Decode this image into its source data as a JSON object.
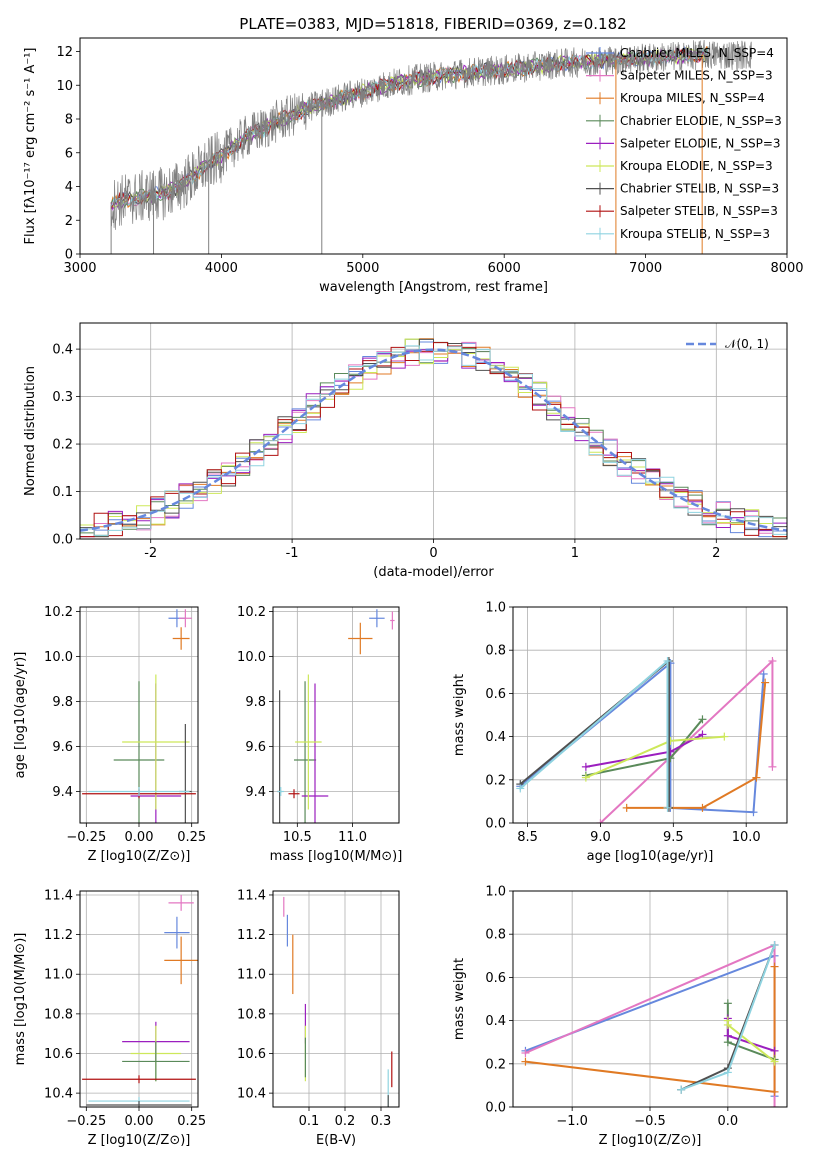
{
  "chart_data": [
    {
      "type": "line",
      "panel": "spectrum",
      "title": "PLATE=0383, MJD=51818, FIBERID=0369, z=0.182",
      "xlabel": "wavelength [Angstrom, rest frame]",
      "ylabel": "Flux [fλ10⁻¹⁷ erg cm⁻² s⁻¹ A⁻¹]",
      "xlim": [
        3000,
        8000
      ],
      "ylim": [
        0,
        12.8
      ],
      "xticks": [
        3000,
        4000,
        5000,
        6000,
        7000,
        8000
      ],
      "yticks": [
        0,
        2,
        4,
        6,
        8,
        10,
        12
      ],
      "legend_position": "upper right",
      "data_series": {
        "name": "data",
        "color": "#808080",
        "x": [
          3220,
          3300,
          3400,
          3500,
          3600,
          3700,
          3800,
          3900,
          4000,
          4100,
          4200,
          4300,
          4400,
          4500,
          4600,
          4700,
          4800,
          4900,
          5000,
          5200,
          5400,
          5600,
          5800,
          6000,
          6200,
          6400,
          6600,
          6800,
          7000,
          7200,
          7400
        ],
        "y": [
          2.9,
          3.2,
          3.3,
          3.5,
          3.6,
          4.0,
          4.6,
          5.3,
          5.8,
          6.5,
          7.1,
          7.4,
          7.9,
          8.2,
          8.6,
          8.9,
          9.1,
          9.4,
          9.6,
          10.1,
          10.4,
          10.6,
          10.8,
          10.9,
          11.1,
          11.3,
          11.4,
          11.5,
          11.6,
          11.7,
          11.8
        ]
      },
      "models": [
        {
          "name": "Chabrier MILES, N_SSP=4",
          "color": "#6688dd"
        },
        {
          "name": "Salpeter MILES, N_SSP=3",
          "color": "#e377c2"
        },
        {
          "name": "Kroupa MILES, N_SSP=4",
          "color": "#e07a24"
        },
        {
          "name": "Chabrier ELODIE, N_SSP=3",
          "color": "#5a8a5a"
        },
        {
          "name": "Salpeter ELODIE, N_SSP=3",
          "color": "#9b1fbf"
        },
        {
          "name": "Kroupa ELODIE, N_SSP=3",
          "color": "#cde85a"
        },
        {
          "name": "Chabrier STELIB, N_SSP=3",
          "color": "#505050"
        },
        {
          "name": "Salpeter STELIB, N_SSP=3",
          "color": "#b01010"
        },
        {
          "name": "Kroupa STELIB, N_SSP=3",
          "color": "#8fd3e0"
        }
      ]
    },
    {
      "type": "line",
      "panel": "residuals",
      "xlabel": "(data-model)/error",
      "ylabel": "Normed distribution",
      "xlim": [
        -2.5,
        2.5
      ],
      "ylim": [
        0,
        0.455
      ],
      "xticks": [
        -2,
        -1,
        0,
        1,
        2
      ],
      "yticks": [
        0.0,
        0.1,
        0.2,
        0.3,
        0.4
      ],
      "grid": true,
      "legend": "𝒩(0, 1)",
      "legend_position": "upper right",
      "gaussian_color": "#6688dd"
    },
    {
      "type": "scatter",
      "panel": "age-vs-Z",
      "xlabel": "Z [log10(Z/Z⊙)]",
      "ylabel": "age  [log10(age/yr)]",
      "xlim": [
        -0.28,
        0.28
      ],
      "ylim": [
        9.26,
        10.22
      ],
      "xticks": [
        -0.25,
        0.0,
        0.25
      ],
      "xticklabels": [
        "−0.25",
        "0.00",
        "0.25"
      ],
      "yticks": [
        9.4,
        9.6,
        9.8,
        10.0,
        10.2
      ],
      "grid": true,
      "points": [
        {
          "x": 0.18,
          "y": 10.17,
          "xerr": 0.04,
          "yerr": 0.04,
          "c": "#6688dd"
        },
        {
          "x": 0.22,
          "y": 10.17,
          "xerr": 0.03,
          "yerr": 0.04,
          "c": "#e377c2"
        },
        {
          "x": 0.2,
          "y": 10.08,
          "xerr": 0.04,
          "yerr": 0.05,
          "c": "#e07a24"
        },
        {
          "x": 0.0,
          "y": 9.54,
          "xerr": 0.12,
          "yerr": 0.35,
          "c": "#5a8a5a"
        },
        {
          "x": 0.08,
          "y": 9.38,
          "xerr": 0.12,
          "yerr": 0.5,
          "c": "#9b1fbf"
        },
        {
          "x": 0.08,
          "y": 9.62,
          "xerr": 0.16,
          "yerr": 0.3,
          "c": "#cde85a"
        },
        {
          "x": 0.22,
          "y": 9.4,
          "xerr": 0.03,
          "yerr": 0.3,
          "c": "#505050"
        },
        {
          "x": 0.0,
          "y": 9.39,
          "xerr": 0.27,
          "yerr": 0.02,
          "c": "#b01010"
        },
        {
          "x": 0.0,
          "y": 9.4,
          "xerr": 0.24,
          "yerr": 0.02,
          "c": "#8fd3e0"
        }
      ]
    },
    {
      "type": "scatter",
      "panel": "age-vs-mass",
      "xlabel": "mass [log10(M/M⊙)]",
      "xlim": [
        10.28,
        11.42
      ],
      "ylim": [
        9.26,
        10.22
      ],
      "xticks": [
        10.5,
        11.0
      ],
      "yticks": [
        9.4,
        9.6,
        9.8,
        10.0,
        10.2
      ],
      "grid": true,
      "points": [
        {
          "x": 11.22,
          "y": 10.17,
          "xerr": 0.07,
          "yerr": 0.04,
          "c": "#6688dd"
        },
        {
          "x": 11.36,
          "y": 10.16,
          "xerr": 0.02,
          "yerr": 0.04,
          "c": "#e377c2"
        },
        {
          "x": 11.07,
          "y": 10.08,
          "xerr": 0.11,
          "yerr": 0.07,
          "c": "#e07a24"
        },
        {
          "x": 10.57,
          "y": 9.54,
          "xerr": 0.1,
          "yerr": 0.35,
          "c": "#5a8a5a"
        },
        {
          "x": 10.66,
          "y": 9.38,
          "xerr": 0.12,
          "yerr": 0.5,
          "c": "#9b1fbf"
        },
        {
          "x": 10.6,
          "y": 9.62,
          "xerr": 0.12,
          "yerr": 0.3,
          "c": "#cde85a"
        },
        {
          "x": 10.34,
          "y": 9.4,
          "xerr": 0.02,
          "yerr": 0.45,
          "c": "#505050"
        },
        {
          "x": 10.47,
          "y": 9.39,
          "xerr": 0.05,
          "yerr": 0.02,
          "c": "#b01010"
        },
        {
          "x": 10.35,
          "y": 9.4,
          "xerr": 0.03,
          "yerr": 0.02,
          "c": "#8fd3e0"
        }
      ]
    },
    {
      "type": "line",
      "panel": "mass-weight-vs-age",
      "xlabel": "age  [log10(age/yr)]",
      "ylabel": "mass weight",
      "xlim": [
        8.4,
        10.28
      ],
      "ylim": [
        0,
        1
      ],
      "xticks": [
        8.5,
        9.0,
        9.5,
        10.0
      ],
      "yticks": [
        0.0,
        0.2,
        0.4,
        0.6,
        0.8,
        1.0
      ],
      "grid": true,
      "series": [
        {
          "c": "#6688dd",
          "x": [
            8.45,
            9.48,
            9.48,
            10.05,
            10.12
          ],
          "y": [
            0.17,
            0.74,
            0.07,
            0.05,
            0.69
          ]
        },
        {
          "c": "#e377c2",
          "x": [
            9.0,
            10.18,
            10.18
          ],
          "y": [
            0.0,
            0.75,
            0.26
          ]
        },
        {
          "c": "#e07a24",
          "x": [
            9.18,
            9.7,
            10.07,
            10.13
          ],
          "y": [
            0.07,
            0.07,
            0.21,
            0.65
          ]
        },
        {
          "c": "#5a8a5a",
          "x": [
            8.9,
            9.48,
            9.7
          ],
          "y": [
            0.22,
            0.3,
            0.48
          ]
        },
        {
          "c": "#9b1fbf",
          "x": [
            8.9,
            9.48,
            9.7
          ],
          "y": [
            0.26,
            0.33,
            0.41
          ]
        },
        {
          "c": "#cde85a",
          "x": [
            8.9,
            9.48,
            9.85
          ],
          "y": [
            0.21,
            0.38,
            0.4
          ]
        },
        {
          "c": "#505050",
          "x": [
            8.45,
            9.47,
            9.47
          ],
          "y": [
            0.18,
            0.75,
            0.07
          ]
        },
        {
          "c": "#8fd3e0",
          "x": [
            8.45,
            9.46,
            9.46
          ],
          "y": [
            0.16,
            0.75,
            0.07
          ]
        }
      ]
    },
    {
      "type": "scatter",
      "panel": "mass-vs-Z",
      "xlabel": "Z [log10(Z/Z⊙)]",
      "ylabel": "mass [log10(M/M⊙)]",
      "xlim": [
        -0.28,
        0.28
      ],
      "ylim": [
        10.33,
        11.42
      ],
      "xticks": [
        -0.25,
        0.0,
        0.25
      ],
      "xticklabels": [
        "−0.25",
        "0.00",
        "0.25"
      ],
      "yticks": [
        10.4,
        10.6,
        10.8,
        11.0,
        11.2,
        11.4
      ],
      "grid": true,
      "points": [
        {
          "x": 0.2,
          "y": 11.36,
          "xerr": 0.06,
          "yerr": 0.04,
          "c": "#e377c2"
        },
        {
          "x": 0.18,
          "y": 11.21,
          "xerr": 0.06,
          "yerr": 0.08,
          "c": "#6688dd"
        },
        {
          "x": 0.2,
          "y": 11.07,
          "xerr": 0.08,
          "yerr": 0.12,
          "c": "#e07a24"
        },
        {
          "x": 0.08,
          "y": 10.66,
          "xerr": 0.16,
          "yerr": 0.1,
          "c": "#9b1fbf"
        },
        {
          "x": 0.08,
          "y": 10.6,
          "xerr": 0.12,
          "yerr": 0.14,
          "c": "#cde85a"
        },
        {
          "x": 0.08,
          "y": 10.56,
          "xerr": 0.16,
          "yerr": 0.1,
          "c": "#5a8a5a"
        },
        {
          "x": 0.0,
          "y": 10.47,
          "xerr": 0.27,
          "yerr": 0.02,
          "c": "#b01010"
        },
        {
          "x": 0.0,
          "y": 10.36,
          "xerr": 0.24,
          "yerr": 0.02,
          "c": "#8fd3e0"
        },
        {
          "x": 0.0,
          "y": 10.34,
          "xerr": 0.25,
          "yerr": 0.02,
          "c": "#505050"
        }
      ]
    },
    {
      "type": "scatter",
      "panel": "mass-vs-EBV",
      "xlabel": "E(B-V)",
      "xlim": [
        0.0,
        0.35
      ],
      "ylim": [
        10.33,
        11.42
      ],
      "xticks": [
        0.1,
        0.2,
        0.3
      ],
      "yticks": [
        10.4,
        10.6,
        10.8,
        11.0,
        11.2,
        11.4
      ],
      "grid": true,
      "points": [
        {
          "x": 0.03,
          "y": 11.34,
          "xerr": 0.0,
          "yerr": 0.05,
          "c": "#e377c2"
        },
        {
          "x": 0.04,
          "y": 11.22,
          "xerr": 0.0,
          "yerr": 0.08,
          "c": "#6688dd"
        },
        {
          "x": 0.055,
          "y": 11.05,
          "xerr": 0.0,
          "yerr": 0.15,
          "c": "#e07a24"
        },
        {
          "x": 0.09,
          "y": 10.75,
          "xerr": 0.0,
          "yerr": 0.1,
          "c": "#9b1fbf"
        },
        {
          "x": 0.09,
          "y": 10.6,
          "xerr": 0.0,
          "yerr": 0.14,
          "c": "#cde85a"
        },
        {
          "x": 0.09,
          "y": 10.58,
          "xerr": 0.0,
          "yerr": 0.1,
          "c": "#5a8a5a"
        },
        {
          "x": 0.33,
          "y": 10.52,
          "xerr": 0.0,
          "yerr": 0.09,
          "c": "#b01010"
        },
        {
          "x": 0.32,
          "y": 10.42,
          "xerr": 0.0,
          "yerr": 0.1,
          "c": "#8fd3e0"
        },
        {
          "x": 0.32,
          "y": 10.36,
          "xerr": 0.0,
          "yerr": 0.03,
          "c": "#505050"
        }
      ]
    },
    {
      "type": "line",
      "panel": "mass-weight-vs-Z",
      "xlabel": "Z [log10(Z/Z⊙)]",
      "ylabel": "mass weight",
      "xlim": [
        -1.38,
        0.38
      ],
      "ylim": [
        0,
        1
      ],
      "xticks": [
        -1.0,
        -0.5,
        0.0
      ],
      "xticklabels": [
        "−1.0",
        "−0.5",
        "0.0"
      ],
      "yticks": [
        0.0,
        0.2,
        0.4,
        0.6,
        0.8,
        1.0
      ],
      "grid": true,
      "series": [
        {
          "c": "#6688dd",
          "x": [
            -1.3,
            0.3,
            0.3
          ],
          "y": [
            0.26,
            0.7,
            0.05
          ]
        },
        {
          "c": "#e377c2",
          "x": [
            -1.3,
            0.3,
            0.3
          ],
          "y": [
            0.25,
            0.75,
            0.0
          ]
        },
        {
          "c": "#e07a24",
          "x": [
            -1.3,
            0.3,
            0.3
          ],
          "y": [
            0.21,
            0.07,
            0.65
          ]
        },
        {
          "c": "#5a8a5a",
          "x": [
            0.0,
            0.0,
            0.3
          ],
          "y": [
            0.48,
            0.3,
            0.22
          ]
        },
        {
          "c": "#9b1fbf",
          "x": [
            0.0,
            0.0,
            0.3
          ],
          "y": [
            0.41,
            0.33,
            0.26
          ]
        },
        {
          "c": "#cde85a",
          "x": [
            0.0,
            0.0,
            0.3
          ],
          "y": [
            0.4,
            0.38,
            0.21
          ]
        },
        {
          "c": "#505050",
          "x": [
            -0.3,
            0.0,
            0.3
          ],
          "y": [
            0.08,
            0.18,
            0.75
          ]
        },
        {
          "c": "#8fd3e0",
          "x": [
            -0.3,
            0.0,
            0.3
          ],
          "y": [
            0.08,
            0.16,
            0.75
          ]
        }
      ]
    }
  ]
}
